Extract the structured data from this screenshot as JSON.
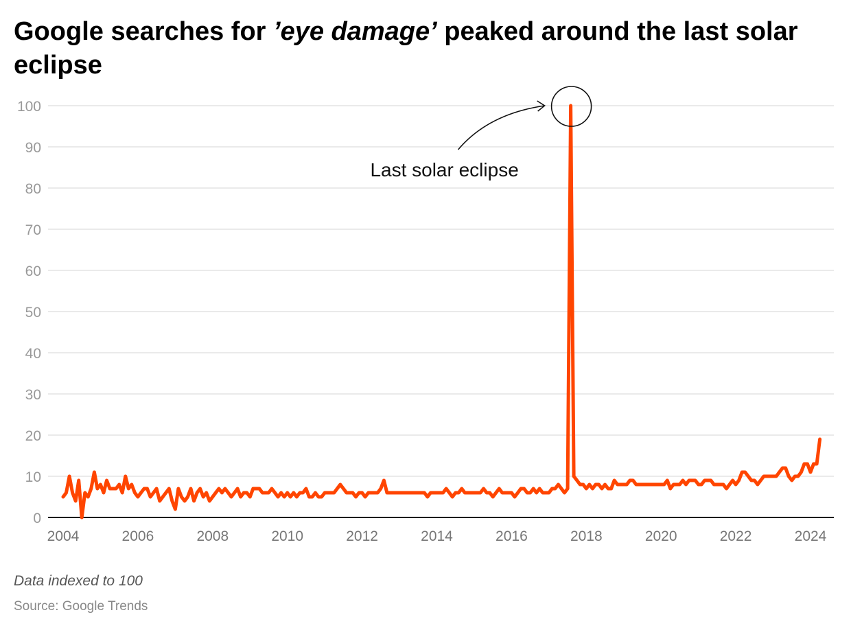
{
  "title": {
    "prefix": "Google searches for ",
    "emphasis": "’eye damage’",
    "suffix": " peaked around the last solar eclipse"
  },
  "footer": {
    "note": "Data indexed to 100",
    "source": "Source: Google Trends"
  },
  "colors": {
    "line": "#ff4500",
    "grid": "#e3e3e3",
    "axis": "#111111",
    "tick_label": "#999999"
  },
  "chart_data": {
    "type": "line",
    "title": "Google searches for ’eye damage’ peaked around the last solar eclipse",
    "xlabel": "",
    "ylabel": "",
    "ylim": [
      0,
      100
    ],
    "yticks": [
      0,
      10,
      20,
      30,
      40,
      50,
      60,
      70,
      80,
      90,
      100
    ],
    "xticks": [
      "2004",
      "2006",
      "2008",
      "2010",
      "2012",
      "2014",
      "2016",
      "2018",
      "2020",
      "2022",
      "2024"
    ],
    "grid": true,
    "start": "2004-01",
    "frequency": "monthly",
    "values": [
      5,
      6,
      10,
      6,
      4,
      9,
      0,
      6,
      5,
      7,
      11,
      7,
      8,
      6,
      9,
      7,
      7,
      7,
      8,
      6,
      10,
      7,
      8,
      6,
      5,
      6,
      7,
      7,
      5,
      6,
      7,
      4,
      5,
      6,
      7,
      4,
      2,
      7,
      5,
      4,
      5,
      7,
      4,
      6,
      7,
      5,
      6,
      4,
      5,
      6,
      7,
      6,
      7,
      6,
      5,
      6,
      7,
      5,
      6,
      6,
      5,
      7,
      7,
      7,
      6,
      6,
      6,
      7,
      6,
      5,
      6,
      5,
      6,
      5,
      6,
      5,
      6,
      6,
      7,
      5,
      5,
      6,
      5,
      5,
      6,
      6,
      6,
      6,
      7,
      8,
      7,
      6,
      6,
      6,
      5,
      6,
      6,
      5,
      6,
      6,
      6,
      6,
      7,
      9,
      6,
      6,
      6,
      6,
      6,
      6,
      6,
      6,
      6,
      6,
      6,
      6,
      6,
      5,
      6,
      6,
      6,
      6,
      6,
      7,
      6,
      5,
      6,
      6,
      7,
      6,
      6,
      6,
      6,
      6,
      6,
      7,
      6,
      6,
      5,
      6,
      7,
      6,
      6,
      6,
      6,
      5,
      6,
      7,
      7,
      6,
      6,
      7,
      6,
      7,
      6,
      6,
      6,
      7,
      7,
      8,
      7,
      6,
      7,
      100,
      10,
      9,
      8,
      8,
      7,
      8,
      7,
      8,
      8,
      7,
      8,
      7,
      7,
      9,
      8,
      8,
      8,
      8,
      9,
      9,
      8,
      8,
      8,
      8,
      8,
      8,
      8,
      8,
      8,
      8,
      9,
      7,
      8,
      8,
      8,
      9,
      8,
      9,
      9,
      9,
      8,
      8,
      9,
      9,
      9,
      8,
      8,
      8,
      8,
      7,
      8,
      9,
      8,
      9,
      11,
      11,
      10,
      9,
      9,
      8,
      9,
      10,
      10,
      10,
      10,
      10,
      11,
      12,
      12,
      10,
      9,
      10,
      10,
      11,
      13,
      13,
      11,
      13,
      13,
      19
    ],
    "annotations": [
      {
        "text": "Last solar eclipse",
        "date": "2017-08",
        "value": 100
      }
    ]
  }
}
